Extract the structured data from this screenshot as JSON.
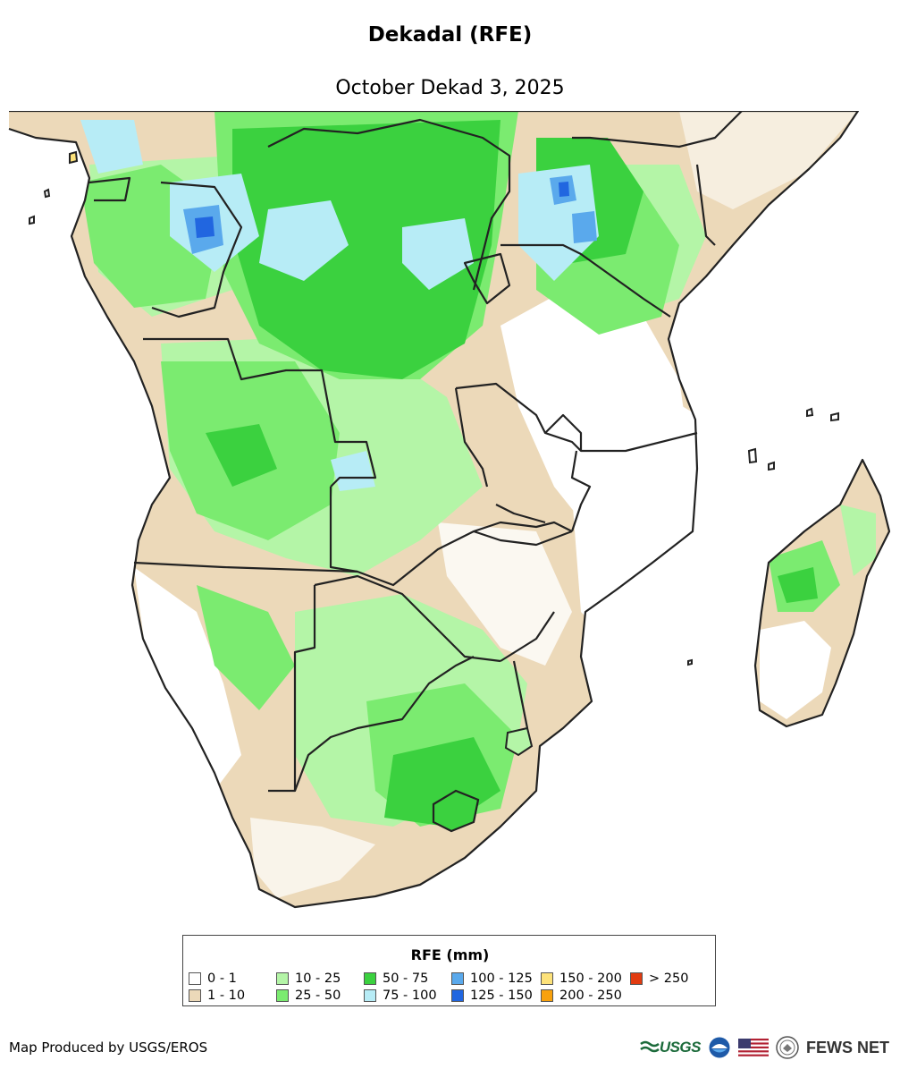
{
  "header": {
    "title": "Dekadal (RFE)",
    "subtitle": "October Dekad 3, 2025"
  },
  "legend": {
    "title": "RFE (mm)",
    "items": [
      {
        "label": "0 - 1",
        "color": "#ffffff"
      },
      {
        "label": "1 - 10",
        "color": "#ecd9b9"
      },
      {
        "label": "10 - 25",
        "color": "#b4f5a7"
      },
      {
        "label": "25 - 50",
        "color": "#7beb70"
      },
      {
        "label": "50 - 75",
        "color": "#3bd13f"
      },
      {
        "label": "75 - 100",
        "color": "#b7ecf6"
      },
      {
        "label": "100 - 125",
        "color": "#5aa9ec"
      },
      {
        "label": "125 - 150",
        "color": "#2166e0"
      },
      {
        "label": "150 - 200",
        "color": "#fde27a"
      },
      {
        "label": "200 - 250",
        "color": "#f8a10d"
      },
      {
        "label": "> 250",
        "color": "#e23b10"
      }
    ]
  },
  "footer": {
    "credit": "Map Produced by USGS/EROS",
    "logos": {
      "usgs": "USGS",
      "fews": "FEWS NET"
    }
  },
  "map": {
    "region": "Southern Africa",
    "background_color": "#ffffff",
    "border_color": "#222222"
  }
}
